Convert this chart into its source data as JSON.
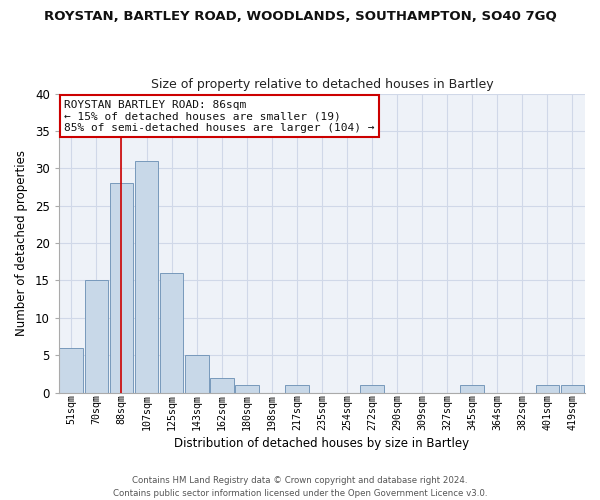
{
  "title": "ROYSTAN, BARTLEY ROAD, WOODLANDS, SOUTHAMPTON, SO40 7GQ",
  "subtitle": "Size of property relative to detached houses in Bartley",
  "xlabel": "Distribution of detached houses by size in Bartley",
  "ylabel": "Number of detached properties",
  "categories": [
    "51sqm",
    "70sqm",
    "88sqm",
    "107sqm",
    "125sqm",
    "143sqm",
    "162sqm",
    "180sqm",
    "198sqm",
    "217sqm",
    "235sqm",
    "254sqm",
    "272sqm",
    "290sqm",
    "309sqm",
    "327sqm",
    "345sqm",
    "364sqm",
    "382sqm",
    "401sqm",
    "419sqm"
  ],
  "values": [
    6,
    15,
    28,
    31,
    16,
    5,
    2,
    1,
    0,
    1,
    0,
    0,
    1,
    0,
    0,
    0,
    1,
    0,
    0,
    1,
    1
  ],
  "bar_color": "#c8d8e8",
  "bar_edge_color": "#7799bb",
  "bar_edge_width": 0.7,
  "vline_x_index": 2,
  "vline_color": "#cc0000",
  "ylim": [
    0,
    40
  ],
  "yticks": [
    0,
    5,
    10,
    15,
    20,
    25,
    30,
    35,
    40
  ],
  "annotation_line1": "ROYSTAN BARTLEY ROAD: 86sqm",
  "annotation_line2": "← 15% of detached houses are smaller (19)",
  "annotation_line3": "85% of semi-detached houses are larger (104) →",
  "grid_color": "#d0d8e8",
  "bg_color": "#eef2f8",
  "footer_line1": "Contains HM Land Registry data © Crown copyright and database right 2024.",
  "footer_line2": "Contains public sector information licensed under the Open Government Licence v3.0."
}
